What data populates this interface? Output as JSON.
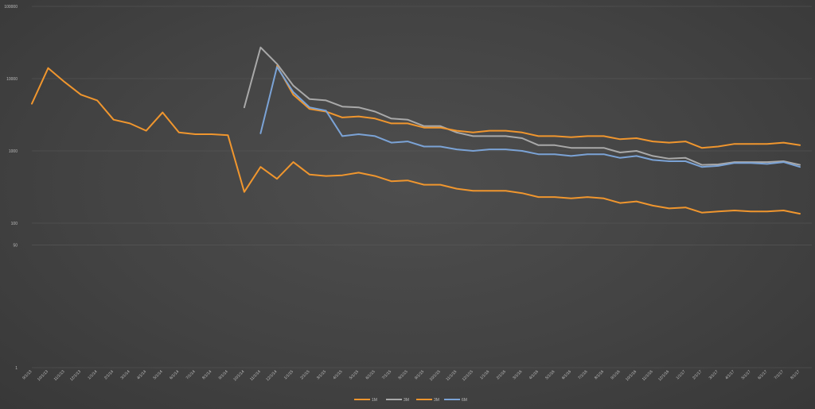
{
  "chart_data": {
    "type": "line",
    "title": "",
    "xlabel": "",
    "ylabel": "",
    "y_scale": "log",
    "ylim": [
      1,
      100000
    ],
    "y_ticks": [
      {
        "value": 1,
        "label": "1"
      },
      {
        "value": 50,
        "label": "50"
      },
      {
        "value": 100,
        "label": "100"
      },
      {
        "value": 1000,
        "label": "1000"
      },
      {
        "value": 10000,
        "label": "10000"
      },
      {
        "value": 100000,
        "label": "100000"
      }
    ],
    "grid": true,
    "legend_position": "bottom",
    "categories": [
      "9/1/13",
      "10/1/13",
      "11/1/13",
      "12/1/13",
      "1/1/14",
      "2/1/14",
      "3/1/14",
      "4/1/14",
      "5/1/14",
      "6/1/14",
      "7/1/14",
      "8/1/14",
      "9/1/14",
      "10/1/14",
      "11/1/14",
      "12/1/14",
      "1/1/15",
      "2/1/15",
      "3/1/15",
      "4/1/15",
      "5/1/15",
      "6/1/15",
      "7/1/15",
      "8/1/15",
      "9/1/15",
      "10/1/15",
      "11/1/15",
      "12/1/15",
      "1/1/16",
      "2/1/16",
      "3/1/16",
      "4/1/16",
      "5/1/16",
      "6/1/16",
      "7/1/16",
      "8/1/16",
      "9/1/16",
      "10/1/16",
      "11/1/16",
      "12/1/16",
      "1/1/17",
      "2/1/17",
      "3/1/17",
      "4/1/17",
      "5/1/17",
      "6/1/17",
      "7/1/17",
      "8/1/17"
    ],
    "series": [
      {
        "name": "1M",
        "color": "#f0962e",
        "values": [
          4500,
          14000,
          9000,
          6000,
          5000,
          2700,
          2400,
          1900,
          3400,
          1800,
          1700,
          1700,
          1650,
          270,
          600,
          410,
          700,
          470,
          450,
          460,
          500,
          450,
          380,
          390,
          340,
          340,
          300,
          280,
          280,
          280,
          260,
          230,
          230,
          220,
          230,
          220,
          190,
          200,
          175,
          160,
          165,
          140,
          145,
          150,
          145,
          145,
          150,
          135
        ]
      },
      {
        "name": "3M",
        "color": "#a9a9a9",
        "values": [
          null,
          null,
          null,
          null,
          null,
          null,
          null,
          null,
          null,
          null,
          null,
          null,
          null,
          4000,
          27000,
          16000,
          8000,
          5200,
          5000,
          4100,
          4000,
          3500,
          2800,
          2700,
          2200,
          2200,
          1800,
          1600,
          1600,
          1600,
          1500,
          1200,
          1200,
          1100,
          1100,
          1100,
          950,
          1000,
          850,
          780,
          800,
          640,
          650,
          700,
          700,
          700,
          720,
          640
        ]
      },
      {
        "name": "3M",
        "color": "#f0962e",
        "values": [
          null,
          null,
          null,
          null,
          null,
          null,
          null,
          null,
          null,
          null,
          null,
          null,
          null,
          null,
          null,
          15000,
          6000,
          3800,
          3500,
          2900,
          3000,
          2800,
          2400,
          2400,
          2100,
          2100,
          1900,
          1800,
          1900,
          1900,
          1800,
          1600,
          1600,
          1550,
          1600,
          1600,
          1450,
          1500,
          1350,
          1300,
          1350,
          1100,
          1150,
          1250,
          1250,
          1250,
          1300,
          1200
        ]
      },
      {
        "name": "6M",
        "color": "#7ba3d6",
        "values": [
          null,
          null,
          null,
          null,
          null,
          null,
          null,
          null,
          null,
          null,
          null,
          null,
          null,
          null,
          1750,
          14500,
          6500,
          4000,
          3600,
          1600,
          1700,
          1600,
          1300,
          1350,
          1150,
          1150,
          1050,
          1000,
          1050,
          1050,
          1000,
          900,
          900,
          850,
          900,
          900,
          800,
          850,
          750,
          720,
          720,
          600,
          620,
          680,
          680,
          660,
          700,
          600
        ]
      }
    ]
  }
}
